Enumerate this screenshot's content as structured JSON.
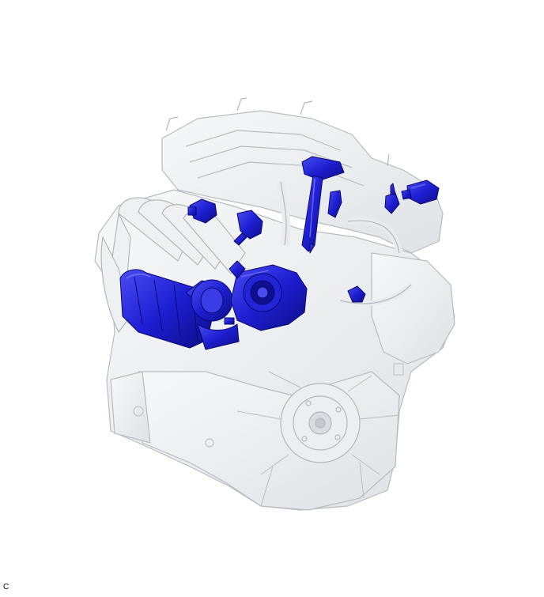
{
  "figure": {
    "code_label": "C",
    "colors": {
      "engine_body": "#f1f2f4",
      "engine_shade": "#dcdfe3",
      "engine_edge": "#b8bcc2",
      "highlight_part": "#1e1ed2",
      "highlight_dark": "#10108f",
      "highlight_light": "#5a5cf0"
    },
    "icons": [
      "engine-block-illustration",
      "intake-manifold",
      "throttle-body",
      "ignition-coil",
      "fuel-injector",
      "sensor",
      "flywheel"
    ]
  }
}
